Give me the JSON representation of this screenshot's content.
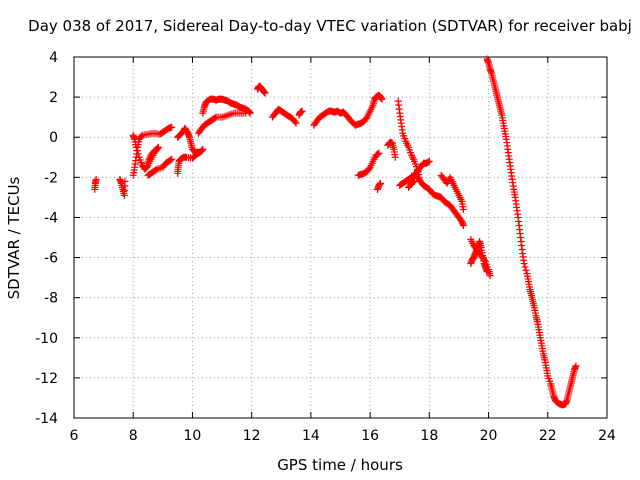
{
  "chart_data": {
    "type": "scatter",
    "title": "Day 038 of 2017, Sidereal Day-to-day VTEC variation (SDTVAR) for receiver babj",
    "xlabel": "GPS time / hours",
    "ylabel": "SDTVAR / TECUs",
    "xlim": [
      6,
      24
    ],
    "ylim": [
      -14,
      4
    ],
    "xticks": [
      6,
      8,
      10,
      12,
      14,
      16,
      18,
      20,
      22,
      24
    ],
    "yticks": [
      -14,
      -12,
      -10,
      -8,
      -6,
      -4,
      -2,
      0,
      2,
      4
    ],
    "grid": true,
    "legend": "none",
    "marker": "+",
    "color": "#ff0000",
    "segments": [
      {
        "name": "seg1",
        "points": [
          [
            6.7,
            -2.6
          ],
          [
            6.72,
            -2.3
          ],
          [
            6.75,
            -2.1
          ]
        ]
      },
      {
        "name": "seg2",
        "points": [
          [
            7.55,
            -2.1
          ],
          [
            7.6,
            -2.3
          ],
          [
            7.65,
            -2.6
          ],
          [
            7.7,
            -2.9
          ],
          [
            7.72,
            -2.2
          ]
        ]
      },
      {
        "name": "seg3",
        "points": [
          [
            8.0,
            -1.9
          ],
          [
            8.05,
            -1.5
          ],
          [
            8.1,
            -1.0
          ],
          [
            8.15,
            -0.5
          ],
          [
            8.2,
            -0.1
          ],
          [
            8.3,
            0.1
          ],
          [
            8.5,
            0.15
          ],
          [
            8.7,
            0.2
          ],
          [
            8.9,
            0.15
          ],
          [
            9.0,
            0.25
          ],
          [
            9.1,
            0.35
          ],
          [
            9.2,
            0.45
          ],
          [
            9.3,
            0.5
          ]
        ]
      },
      {
        "name": "seg4",
        "points": [
          [
            8.0,
            0.1
          ],
          [
            8.05,
            -0.1
          ],
          [
            8.1,
            -0.5
          ],
          [
            8.2,
            -1.0
          ],
          [
            8.3,
            -1.4
          ],
          [
            8.4,
            -1.6
          ],
          [
            8.5,
            -1.4
          ],
          [
            8.6,
            -1.1
          ],
          [
            8.7,
            -0.8
          ],
          [
            8.8,
            -0.6
          ],
          [
            8.85,
            -0.5
          ]
        ]
      },
      {
        "name": "seg5",
        "points": [
          [
            8.5,
            -1.9
          ],
          [
            8.6,
            -1.8
          ],
          [
            8.7,
            -1.7
          ],
          [
            8.8,
            -1.6
          ],
          [
            9.0,
            -1.5
          ],
          [
            9.1,
            -1.3
          ],
          [
            9.2,
            -1.2
          ],
          [
            9.3,
            -1.1
          ]
        ]
      },
      {
        "name": "seg6",
        "points": [
          [
            8.45,
            -1.5
          ],
          [
            8.5,
            -1.2
          ],
          [
            8.6,
            -0.9
          ],
          [
            8.7,
            -0.7
          ],
          [
            8.8,
            -0.6
          ]
        ]
      },
      {
        "name": "seg7",
        "points": [
          [
            9.5,
            -1.8
          ],
          [
            9.52,
            -1.5
          ],
          [
            9.55,
            -1.2
          ],
          [
            9.6,
            -1.1
          ],
          [
            9.7,
            -1.0
          ],
          [
            9.8,
            -1.0
          ],
          [
            10.0,
            -1.05
          ],
          [
            10.1,
            -0.9
          ],
          [
            10.2,
            -0.8
          ],
          [
            10.3,
            -0.7
          ],
          [
            10.35,
            -0.6
          ]
        ]
      },
      {
        "name": "seg8",
        "points": [
          [
            9.5,
            0.0
          ],
          [
            9.6,
            0.15
          ],
          [
            9.7,
            0.3
          ],
          [
            9.75,
            0.45
          ],
          [
            9.8,
            0.3
          ],
          [
            9.85,
            0.2
          ],
          [
            9.9,
            0.0
          ],
          [
            9.95,
            -0.3
          ],
          [
            10.0,
            -0.6
          ],
          [
            10.1,
            -0.75
          ],
          [
            10.2,
            -0.75
          ]
        ]
      },
      {
        "name": "seg9",
        "points": [
          [
            10.2,
            0.2
          ],
          [
            10.3,
            0.4
          ],
          [
            10.4,
            0.6
          ],
          [
            10.5,
            0.7
          ],
          [
            10.6,
            0.8
          ],
          [
            10.7,
            0.9
          ],
          [
            10.8,
            1.0
          ],
          [
            11.0,
            1.0
          ],
          [
            11.2,
            1.1
          ],
          [
            11.4,
            1.2
          ],
          [
            11.6,
            1.2
          ],
          [
            11.8,
            1.2
          ]
        ]
      },
      {
        "name": "seg10",
        "points": [
          [
            10.35,
            1.2
          ],
          [
            10.4,
            1.5
          ],
          [
            10.45,
            1.7
          ],
          [
            10.5,
            1.8
          ],
          [
            10.6,
            1.9
          ],
          [
            10.7,
            1.9
          ],
          [
            10.8,
            1.85
          ],
          [
            10.9,
            1.9
          ],
          [
            11.0,
            1.9
          ],
          [
            11.1,
            1.85
          ],
          [
            11.2,
            1.8
          ],
          [
            11.3,
            1.7
          ],
          [
            11.4,
            1.65
          ],
          [
            11.5,
            1.6
          ],
          [
            11.6,
            1.5
          ],
          [
            11.7,
            1.45
          ],
          [
            11.8,
            1.4
          ],
          [
            11.9,
            1.3
          ],
          [
            11.95,
            1.2
          ]
        ]
      },
      {
        "name": "seg11",
        "points": [
          [
            12.2,
            2.4
          ],
          [
            12.25,
            2.55
          ],
          [
            12.3,
            2.5
          ],
          [
            12.35,
            2.4
          ],
          [
            12.4,
            2.3
          ],
          [
            12.45,
            2.2
          ]
        ]
      },
      {
        "name": "seg12",
        "points": [
          [
            12.7,
            1.0
          ],
          [
            12.8,
            1.2
          ],
          [
            12.9,
            1.4
          ],
          [
            13.0,
            1.3
          ],
          [
            13.1,
            1.2
          ],
          [
            13.2,
            1.1
          ],
          [
            13.3,
            1.0
          ],
          [
            13.4,
            0.9
          ],
          [
            13.5,
            0.7
          ]
        ]
      },
      {
        "name": "seg13",
        "points": [
          [
            13.6,
            1.1
          ],
          [
            13.65,
            1.25
          ],
          [
            13.7,
            1.3
          ]
        ]
      },
      {
        "name": "seg14",
        "points": [
          [
            14.1,
            0.6
          ],
          [
            14.2,
            0.8
          ],
          [
            14.3,
            1.0
          ],
          [
            14.4,
            1.1
          ],
          [
            14.5,
            1.2
          ],
          [
            14.6,
            1.3
          ],
          [
            14.7,
            1.3
          ],
          [
            14.8,
            1.25
          ],
          [
            14.9,
            1.3
          ],
          [
            15.0,
            1.2
          ],
          [
            15.1,
            1.25
          ],
          [
            15.2,
            1.1
          ],
          [
            15.3,
            0.9
          ],
          [
            15.4,
            0.75
          ],
          [
            15.5,
            0.6
          ],
          [
            15.6,
            0.65
          ],
          [
            15.7,
            0.7
          ],
          [
            15.8,
            0.8
          ],
          [
            15.9,
            1.0
          ],
          [
            16.0,
            1.3
          ],
          [
            16.1,
            1.6
          ],
          [
            16.15,
            1.9
          ],
          [
            16.2,
            2.0
          ],
          [
            16.3,
            2.1
          ],
          [
            16.35,
            2.0
          ],
          [
            16.4,
            1.9
          ]
        ]
      },
      {
        "name": "seg15",
        "points": [
          [
            15.6,
            -1.9
          ],
          [
            15.7,
            -1.85
          ],
          [
            15.8,
            -1.8
          ],
          [
            15.9,
            -1.7
          ],
          [
            16.0,
            -1.5
          ],
          [
            16.1,
            -1.2
          ],
          [
            16.2,
            -0.9
          ],
          [
            16.3,
            -0.8
          ]
        ]
      },
      {
        "name": "seg16",
        "points": [
          [
            16.25,
            -2.6
          ],
          [
            16.3,
            -2.4
          ],
          [
            16.35,
            -2.3
          ]
        ]
      },
      {
        "name": "seg17",
        "points": [
          [
            16.6,
            -0.4
          ],
          [
            16.65,
            -0.3
          ],
          [
            16.7,
            -0.25
          ],
          [
            16.75,
            -0.3
          ],
          [
            16.8,
            -0.6
          ],
          [
            16.85,
            -1.0
          ]
        ]
      },
      {
        "name": "seg18",
        "points": [
          [
            16.95,
            1.8
          ],
          [
            17.0,
            1.2
          ],
          [
            17.05,
            0.7
          ],
          [
            17.1,
            0.2
          ],
          [
            17.2,
            -0.2
          ],
          [
            17.3,
            -0.5
          ],
          [
            17.4,
            -0.9
          ],
          [
            17.5,
            -1.2
          ],
          [
            17.6,
            -1.6
          ],
          [
            17.65,
            -2.0
          ]
        ]
      },
      {
        "name": "seg19",
        "points": [
          [
            17.0,
            -2.4
          ],
          [
            17.1,
            -2.3
          ],
          [
            17.2,
            -2.2
          ],
          [
            17.3,
            -2.1
          ],
          [
            17.4,
            -2.0
          ],
          [
            17.5,
            -1.9
          ],
          [
            17.6,
            -1.7
          ],
          [
            17.7,
            -1.5
          ],
          [
            17.8,
            -1.3
          ],
          [
            17.9,
            -1.3
          ],
          [
            18.0,
            -1.2
          ]
        ]
      },
      {
        "name": "seg20",
        "points": [
          [
            17.5,
            -1.8
          ],
          [
            17.6,
            -2.0
          ],
          [
            17.7,
            -2.2
          ],
          [
            17.8,
            -2.4
          ],
          [
            17.9,
            -2.5
          ],
          [
            18.0,
            -2.6
          ],
          [
            18.1,
            -2.8
          ],
          [
            18.2,
            -2.9
          ],
          [
            18.3,
            -2.95
          ],
          [
            18.4,
            -3.0
          ],
          [
            18.5,
            -3.2
          ],
          [
            18.6,
            -3.3
          ],
          [
            18.7,
            -3.4
          ],
          [
            18.8,
            -3.6
          ],
          [
            18.9,
            -3.8
          ],
          [
            19.0,
            -4.0
          ],
          [
            19.1,
            -4.2
          ],
          [
            19.15,
            -4.4
          ]
        ]
      },
      {
        "name": "seg21",
        "points": [
          [
            18.4,
            -1.9
          ],
          [
            18.5,
            -2.1
          ],
          [
            18.6,
            -2.3
          ],
          [
            18.7,
            -2.0
          ],
          [
            18.8,
            -2.3
          ],
          [
            18.9,
            -2.6
          ],
          [
            19.0,
            -2.9
          ],
          [
            19.1,
            -3.2
          ],
          [
            19.15,
            -3.6
          ]
        ]
      },
      {
        "name": "seg22",
        "points": [
          [
            17.3,
            -2.5
          ],
          [
            17.4,
            -2.3
          ],
          [
            17.5,
            -2.2
          ]
        ]
      },
      {
        "name": "seg23",
        "points": [
          [
            19.4,
            -5.1
          ],
          [
            19.5,
            -5.4
          ],
          [
            19.6,
            -5.6
          ],
          [
            19.7,
            -5.8
          ],
          [
            19.8,
            -6.0
          ],
          [
            19.9,
            -6.2
          ],
          [
            20.0,
            -6.6
          ],
          [
            20.05,
            -6.9
          ]
        ]
      },
      {
        "name": "seg24",
        "points": [
          [
            19.4,
            -6.3
          ],
          [
            19.45,
            -6.1
          ],
          [
            19.5,
            -6.0
          ],
          [
            19.55,
            -5.8
          ],
          [
            19.6,
            -5.6
          ],
          [
            19.65,
            -5.4
          ],
          [
            19.7,
            -5.2
          ],
          [
            19.75,
            -5.5
          ],
          [
            19.8,
            -5.9
          ],
          [
            19.85,
            -6.3
          ],
          [
            19.9,
            -6.5
          ],
          [
            19.95,
            -6.7
          ]
        ]
      },
      {
        "name": "seg25",
        "points": [
          [
            19.95,
            3.9
          ],
          [
            20.0,
            3.7
          ],
          [
            20.05,
            3.4
          ],
          [
            20.1,
            3.2
          ],
          [
            20.15,
            2.9
          ],
          [
            20.2,
            2.6
          ],
          [
            20.25,
            2.3
          ],
          [
            20.3,
            2.0
          ],
          [
            20.35,
            1.7
          ],
          [
            20.4,
            1.4
          ],
          [
            20.45,
            1.1
          ],
          [
            20.5,
            0.7
          ],
          [
            20.55,
            0.3
          ],
          [
            20.6,
            -0.1
          ],
          [
            20.65,
            -0.6
          ],
          [
            20.7,
            -1.1
          ],
          [
            20.75,
            -1.6
          ],
          [
            20.8,
            -2.1
          ],
          [
            20.85,
            -2.6
          ],
          [
            20.9,
            -3.0
          ],
          [
            20.95,
            -3.5
          ],
          [
            21.0,
            -4.0
          ],
          [
            21.05,
            -4.6
          ],
          [
            21.1,
            -5.2
          ],
          [
            21.15,
            -5.8
          ],
          [
            21.2,
            -6.3
          ],
          [
            21.3,
            -6.8
          ],
          [
            21.35,
            -7.2
          ],
          [
            21.4,
            -7.6
          ],
          [
            21.45,
            -7.9
          ],
          [
            21.5,
            -8.2
          ],
          [
            21.55,
            -8.5
          ],
          [
            21.6,
            -8.9
          ],
          [
            21.65,
            -9.2
          ],
          [
            21.7,
            -9.6
          ],
          [
            21.75,
            -10.0
          ],
          [
            21.8,
            -10.4
          ],
          [
            21.85,
            -10.8
          ],
          [
            21.9,
            -11.1
          ],
          [
            21.95,
            -11.5
          ],
          [
            22.0,
            -11.9
          ],
          [
            22.1,
            -12.3
          ],
          [
            22.15,
            -12.6
          ],
          [
            22.2,
            -12.9
          ],
          [
            22.25,
            -13.1
          ],
          [
            22.3,
            -13.2
          ],
          [
            22.4,
            -13.3
          ],
          [
            22.5,
            -13.35
          ],
          [
            22.6,
            -13.3
          ],
          [
            22.65,
            -13.1
          ],
          [
            22.7,
            -12.8
          ],
          [
            22.75,
            -12.5
          ],
          [
            22.8,
            -12.2
          ],
          [
            22.85,
            -11.9
          ],
          [
            22.9,
            -11.6
          ],
          [
            22.95,
            -11.4
          ]
        ]
      }
    ]
  }
}
